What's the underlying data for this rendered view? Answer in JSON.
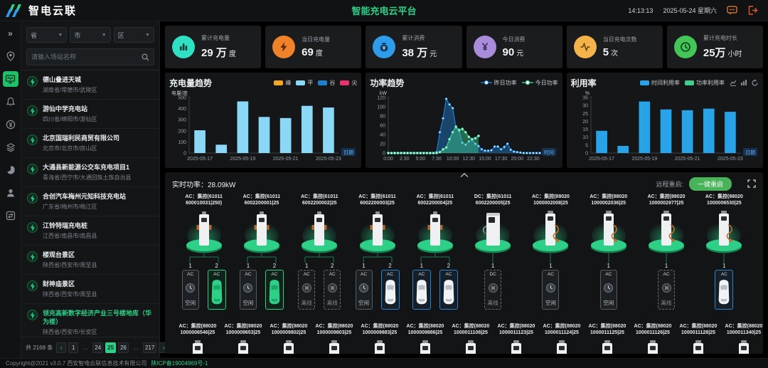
{
  "header": {
    "logo_text": "智电云联",
    "title": "智能充电云平台",
    "time": "14:13:13",
    "date": "2025-05-24 星期六"
  },
  "sidebar": {
    "icons": [
      "collapse",
      "map-pin",
      "monitor",
      "bell",
      "yen",
      "layers",
      "pie",
      "user",
      "transfer"
    ],
    "active_index": 2
  },
  "filters": {
    "province": "省",
    "city": "市",
    "district": "区",
    "search_placeholder": "请输入场站名称"
  },
  "stations": {
    "items": [
      {
        "name": "德山叠进天城",
        "location": "湖南省/常德市/武陵区",
        "selected": false
      },
      {
        "name": "游仙中学充电站",
        "location": "四川省/绵阳市/游仙区",
        "selected": false
      },
      {
        "name": "北京国瑞利民商贸有限公司",
        "location": "北京市/北京市/房山区",
        "selected": false
      },
      {
        "name": "大通县新能源公交车充电项目1",
        "location": "青海省/西宁市/大通回族土族自治县",
        "selected": false
      },
      {
        "name": "合创汽车梅州元知科技充电站",
        "location": "广东省/梅州市/梅江区",
        "selected": false
      },
      {
        "name": "江铃特瑞充电桩",
        "location": "江西省/南昌市/南昌县",
        "selected": false
      },
      {
        "name": "楼观台景区",
        "location": "陕西省/西安市/周至县",
        "selected": false
      },
      {
        "name": "财神庙景区",
        "location": "陕西省/西安市/周至县",
        "selected": false
      },
      {
        "name": "领充高新数字经济产业三号楼地库（华为楼）",
        "location": "陕西省/西安市/长安区",
        "selected": true
      }
    ],
    "total": "共 2168 条",
    "pages": [
      {
        "text": "‹",
        "kind": "prev"
      },
      {
        "text": "1",
        "kind": "page"
      },
      {
        "text": "…",
        "kind": "dots"
      },
      {
        "text": "24",
        "kind": "page"
      },
      {
        "text": "25",
        "kind": "page",
        "active": true
      },
      {
        "text": "26",
        "kind": "page"
      },
      {
        "text": "…",
        "kind": "dots"
      },
      {
        "text": "217",
        "kind": "page"
      },
      {
        "text": "›",
        "kind": "next"
      }
    ]
  },
  "stats": [
    {
      "label": "累计充电量",
      "value": "29 万",
      "unit": "度",
      "color": "#2fe0c3",
      "icon": "bars"
    },
    {
      "label": "当日充电量",
      "value": "69",
      "unit": "度",
      "color": "#f08229",
      "icon": "bolt"
    },
    {
      "label": "累计消费",
      "value": "38 万",
      "unit": "元",
      "color": "#2f9ceb",
      "icon": "bag"
    },
    {
      "label": "今日消费",
      "value": "90",
      "unit": "元",
      "color": "#a98ddb",
      "icon": "yen"
    },
    {
      "label": "当日充电次数",
      "value": "5",
      "unit": "次",
      "color": "#f3b24a",
      "icon": "pulse"
    },
    {
      "label": "累计充电时长",
      "value": "25万",
      "unit": "小时",
      "color": "#43c558",
      "icon": "clock"
    }
  ],
  "chart_data": [
    {
      "type": "bar",
      "title": "充电量趋势",
      "ylabel": "电量/度",
      "xlabel": "日期",
      "categories": [
        "2025-05-17",
        "2025-05-18",
        "2025-05-19",
        "2025-05-20",
        "2025-05-21",
        "2025-05-22",
        "2025-05-23"
      ],
      "values": [
        205,
        75,
        465,
        325,
        315,
        425,
        410
      ],
      "ylim": [
        0,
        500
      ],
      "ytick_step": 100,
      "bar_color": "#8ad8f5",
      "x_shown_indices": [
        0,
        2,
        4,
        6
      ],
      "legend": [
        {
          "label": "峰",
          "color": "#f5a623"
        },
        {
          "label": "平",
          "color": "#8ad8f5"
        },
        {
          "label": "谷",
          "color": "#1e7fd1"
        },
        {
          "label": "尖",
          "color": "#e8336e"
        }
      ]
    },
    {
      "type": "area",
      "title": "功率趋势",
      "ylabel": "kW",
      "xlabel": "时间",
      "interval_minutes": 30,
      "x_ticks": [
        "0:00",
        "2:30",
        "5:00",
        "7:30",
        "10:00",
        "12:30",
        "15:00",
        "17:30",
        "20:00",
        "22:30"
      ],
      "ylim": [
        0,
        120
      ],
      "ytick_step": 20,
      "legend_position": "top-right",
      "series": [
        {
          "name": "昨日功率",
          "color": "#1e7fd1",
          "values": [
            0,
            0,
            0,
            0,
            0,
            0,
            0,
            0,
            0,
            0,
            0,
            0,
            0,
            0,
            0,
            2,
            45,
            75,
            117,
            105,
            97,
            55,
            48,
            22,
            18,
            25,
            28,
            20,
            15,
            8,
            5,
            5,
            6,
            14,
            14,
            8,
            13,
            20,
            7,
            3,
            2,
            1,
            0,
            0,
            0,
            0,
            0,
            0
          ]
        },
        {
          "name": "今日功率",
          "color": "#3ecf8e",
          "values": [
            0,
            0,
            0,
            0,
            0,
            0,
            0,
            0,
            0,
            0,
            0,
            0,
            0,
            0,
            0,
            0,
            2,
            8,
            12,
            30,
            45,
            57,
            50,
            52,
            45,
            35,
            30,
            32,
            37
          ]
        }
      ]
    },
    {
      "type": "bar",
      "title": "利用率",
      "ylabel": "%",
      "xlabel": "日期",
      "categories": [
        "2025-05-17",
        "2025-05-18",
        "2025-05-19",
        "2025-05-20",
        "2025-05-21",
        "2025-05-22",
        "2025-05-23"
      ],
      "values": [
        14,
        4.5,
        32.5,
        27.5,
        27,
        28,
        26
      ],
      "ylim": [
        0,
        35
      ],
      "ytick_step": 5,
      "bar_color": "#29a3e8",
      "x_shown_indices": [
        0,
        2,
        4,
        6
      ],
      "legend": [
        {
          "label": "时间利用率",
          "color": "#29a3e8"
        },
        {
          "label": "功率利用率",
          "color": "#3ecf8e"
        }
      ],
      "tools": [
        "line-chart",
        "bar-chart",
        "refresh"
      ]
    }
  ],
  "pile_section": {
    "realtime_power_label": "实时功率：",
    "realtime_power": "28.09kW",
    "remote_restart_label": "远程重启:",
    "restart_button": "一键重启"
  },
  "status_labels": {
    "idle": "空闲",
    "offline": "离线"
  },
  "piles": {
    "row1": [
      {
        "label1": "AC：集控(61011",
        "label2": "600010031|250)",
        "style": "tower",
        "connectors": [
          {
            "num": "1",
            "mode": "AC",
            "status": "idle"
          },
          {
            "num": "2",
            "mode": "AC",
            "status": "charging"
          }
        ]
      },
      {
        "label1": "AC：集控(61011",
        "label2": "6002200001|25",
        "style": "tower",
        "connectors": [
          {
            "num": "1",
            "mode": "AC",
            "status": "idle"
          },
          {
            "num": "2",
            "mode": "AC",
            "status": "charging"
          }
        ]
      },
      {
        "label1": "AC：集控(61011",
        "label2": "6002200002|25",
        "style": "tower",
        "connectors": [
          {
            "num": "1",
            "mode": "AC",
            "status": "offline"
          },
          {
            "num": "2",
            "mode": "AC",
            "status": "offline"
          }
        ]
      },
      {
        "label1": "AC：集控(61011",
        "label2": "6002200003|25",
        "style": "tower",
        "connectors": [
          {
            "num": "1",
            "mode": "AC",
            "status": "idle"
          },
          {
            "num": "2",
            "mode": "AC",
            "status": "occupied"
          }
        ]
      },
      {
        "label1": "AC：集控(61011",
        "label2": "6002200004|25",
        "style": "tower",
        "connectors": [
          {
            "num": "1",
            "mode": "AC",
            "status": "occupied"
          },
          {
            "num": "2",
            "mode": "AC",
            "status": "occupied"
          }
        ]
      },
      {
        "label1": "DC：集控(61011",
        "label2": "6002200005|25",
        "style": "dc",
        "connectors": [
          {
            "num": "1",
            "mode": "DC",
            "status": "offline"
          }
        ]
      },
      {
        "label1": "AC：集控(88020",
        "label2": "1000002008|25",
        "style": "cable",
        "connectors": [
          {
            "num": "1",
            "mode": "AC",
            "status": "idle"
          }
        ]
      },
      {
        "label1": "AC：集控(88020",
        "label2": "1000002036|25",
        "style": "cable",
        "connectors": [
          {
            "num": "1",
            "mode": "AC",
            "status": "idle"
          }
        ]
      },
      {
        "label1": "AC：集控(88020",
        "label2": "1000002977|25",
        "style": "cable",
        "connectors": [
          {
            "num": "1",
            "mode": "AC",
            "status": "offline"
          }
        ]
      },
      {
        "label1": "AC：集控(88020",
        "label2": "1000006530|25",
        "style": "cable",
        "connectors": [
          {
            "num": "1",
            "mode": "AC",
            "status": "occupied"
          }
        ]
      }
    ],
    "row2": [
      {
        "label1": "AC：集控(88020",
        "label2": "1000006546|25",
        "style": "cable"
      },
      {
        "label1": "AC：集控(88020",
        "label2": "1000009653|25",
        "style": "cable"
      },
      {
        "label1": "AC：集控(88020",
        "label2": "1000009802|25",
        "style": "cable"
      },
      {
        "label1": "AC：集控(88020",
        "label2": "1000009803|25",
        "style": "cable"
      },
      {
        "label1": "AC：集控(88020",
        "label2": "1000009883|25",
        "style": "cable"
      },
      {
        "label1": "AC：集控(88020",
        "label2": "1000009886|25",
        "style": "cable"
      },
      {
        "label1": "AC：集控(88020",
        "label2": "1000011108|25",
        "style": "cable"
      },
      {
        "label1": "AC：集控(88020",
        "label2": "1000011123|25",
        "style": "cable"
      },
      {
        "label1": "AC：集控(88020",
        "label2": "1000011124|25",
        "style": "cable"
      },
      {
        "label1": "AC：集控(88020",
        "label2": "1000011125|25",
        "style": "cable"
      },
      {
        "label1": "AC：集控(88020",
        "label2": "1000011126|25",
        "style": "cable"
      },
      {
        "label1": "AC：集控(88020",
        "label2": "1000011128|25",
        "style": "cable"
      },
      {
        "label1": "AC：集控(88020",
        "label2": "1000011340|25",
        "style": "cable"
      }
    ]
  },
  "footer": {
    "copyright": "Copyright@2021 v3.0.7 西安智电云联信息技术有限公司",
    "icp": "陕ICP备19004969号-1"
  },
  "colors": {
    "accent_green": "#2ecf87",
    "charging_green": "#2ecf87",
    "occupied_blue": "#2f81c9",
    "header_title": "#2ecf87"
  }
}
